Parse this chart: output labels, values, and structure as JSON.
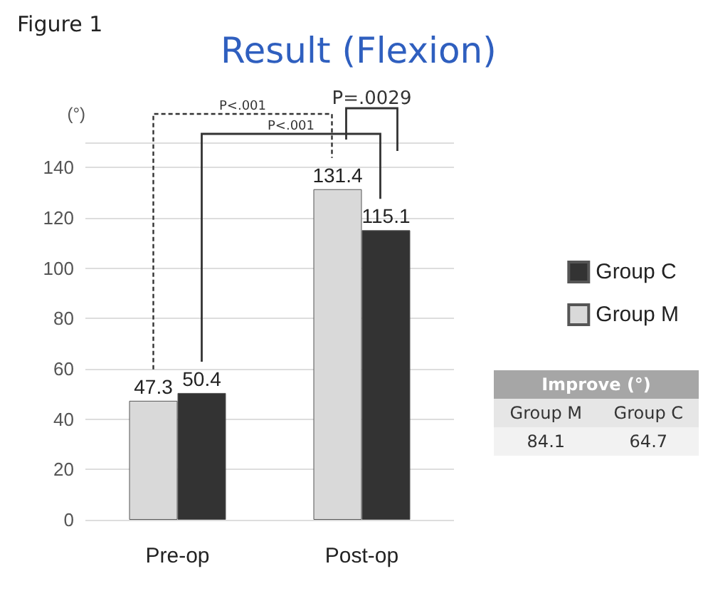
{
  "chart_data": {
    "type": "bar",
    "title": "Result (Flexion)",
    "ylabel": "(°)",
    "annotations": [
      "Figure 1",
      "P<.001",
      "P<.001",
      "P=.0029",
      "Improve (°)",
      "Group M",
      "Group C",
      "84.1",
      "64.7"
    ],
    "categories": [
      "Pre-op",
      "Post-op"
    ],
    "series": [
      {
        "name": "Group M",
        "color": "#d9d9d9",
        "values": [
          47.3,
          131.4
        ]
      },
      {
        "name": "Group C",
        "color": "#333333",
        "values": [
          50.4,
          115.1
        ]
      }
    ],
    "ylim": [
      0,
      150
    ],
    "yticks": [
      0,
      20,
      40,
      60,
      80,
      100,
      120,
      140,
      {
        "value": 150,
        "label": null
      }
    ],
    "data_labels": true,
    "legend": "right",
    "grid": "y"
  }
}
